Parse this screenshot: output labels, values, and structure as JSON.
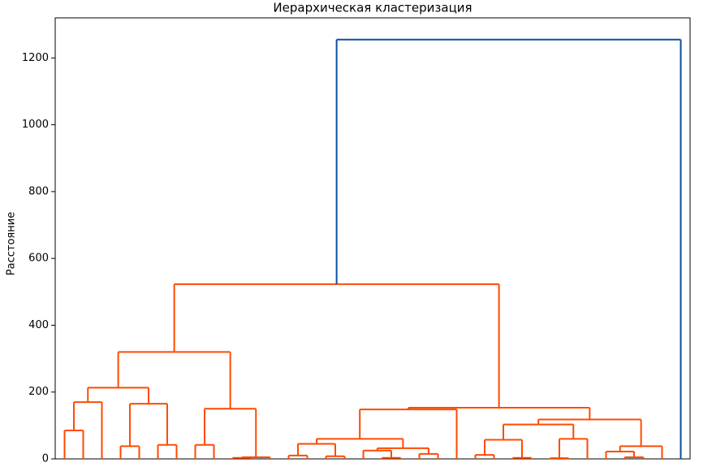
{
  "chart_data": {
    "type": "dendrogram",
    "title": "Иерархическая кластеризация",
    "ylabel": "Расстояние",
    "color": "#ff4a00",
    "ylim": [
      0,
      1320
    ],
    "yticks": [
      0,
      200,
      400,
      600,
      800,
      1000,
      1200
    ],
    "tree": {
      "height": 1255,
      "color": "#0b4ea2",
      "children": [
        {
          "height": 523,
          "children": [
            {
              "height": 320,
              "children": [
                {
                  "height": 213,
                  "children": [
                    {
                      "height": 170,
                      "children": [
                        {
                          "height": 85,
                          "children": [
                            0,
                            0
                          ]
                        },
                        0
                      ]
                    },
                    {
                      "height": 165,
                      "children": [
                        {
                          "height": 38,
                          "children": [
                            0,
                            0
                          ]
                        },
                        {
                          "height": 42,
                          "children": [
                            0,
                            0
                          ]
                        }
                      ]
                    }
                  ]
                },
                {
                  "height": 150,
                  "children": [
                    {
                      "height": 42,
                      "children": [
                        0,
                        0
                      ]
                    },
                    {
                      "height": 5,
                      "children": [
                        {
                          "height": 3,
                          "children": [
                            0,
                            0
                          ]
                        },
                        0
                      ]
                    }
                  ]
                }
              ]
            },
            {
              "height": 153,
              "children": [
                {
                  "height": 148,
                  "children": [
                    {
                      "height": 60,
                      "children": [
                        {
                          "height": 45,
                          "children": [
                            {
                              "height": 10,
                              "children": [
                                0,
                                0
                              ]
                            },
                            {
                              "height": 8,
                              "children": [
                                0,
                                0
                              ]
                            }
                          ]
                        },
                        {
                          "height": 32,
                          "children": [
                            {
                              "height": 25,
                              "children": [
                                0,
                                {
                                  "height": 3,
                                  "children": [
                                    0,
                                    0
                                  ]
                                }
                              ]
                            },
                            {
                              "height": 15,
                              "children": [
                                0,
                                0
                              ]
                            }
                          ]
                        }
                      ]
                    },
                    0
                  ]
                },
                {
                  "height": 118,
                  "children": [
                    {
                      "height": 103,
                      "children": [
                        {
                          "height": 57,
                          "children": [
                            {
                              "height": 12,
                              "children": [
                                0,
                                0
                              ]
                            },
                            {
                              "height": 3,
                              "children": [
                                0,
                                0
                              ]
                            }
                          ]
                        },
                        {
                          "height": 60,
                          "children": [
                            {
                              "height": 2,
                              "children": [
                                0,
                                0
                              ]
                            },
                            0
                          ]
                        }
                      ]
                    },
                    {
                      "height": 38,
                      "children": [
                        {
                          "height": 22,
                          "children": [
                            0,
                            {
                              "height": 5,
                              "children": [
                                0,
                                0
                              ]
                            }
                          ]
                        },
                        0
                      ]
                    }
                  ]
                }
              ]
            }
          ]
        },
        0
      ]
    }
  }
}
